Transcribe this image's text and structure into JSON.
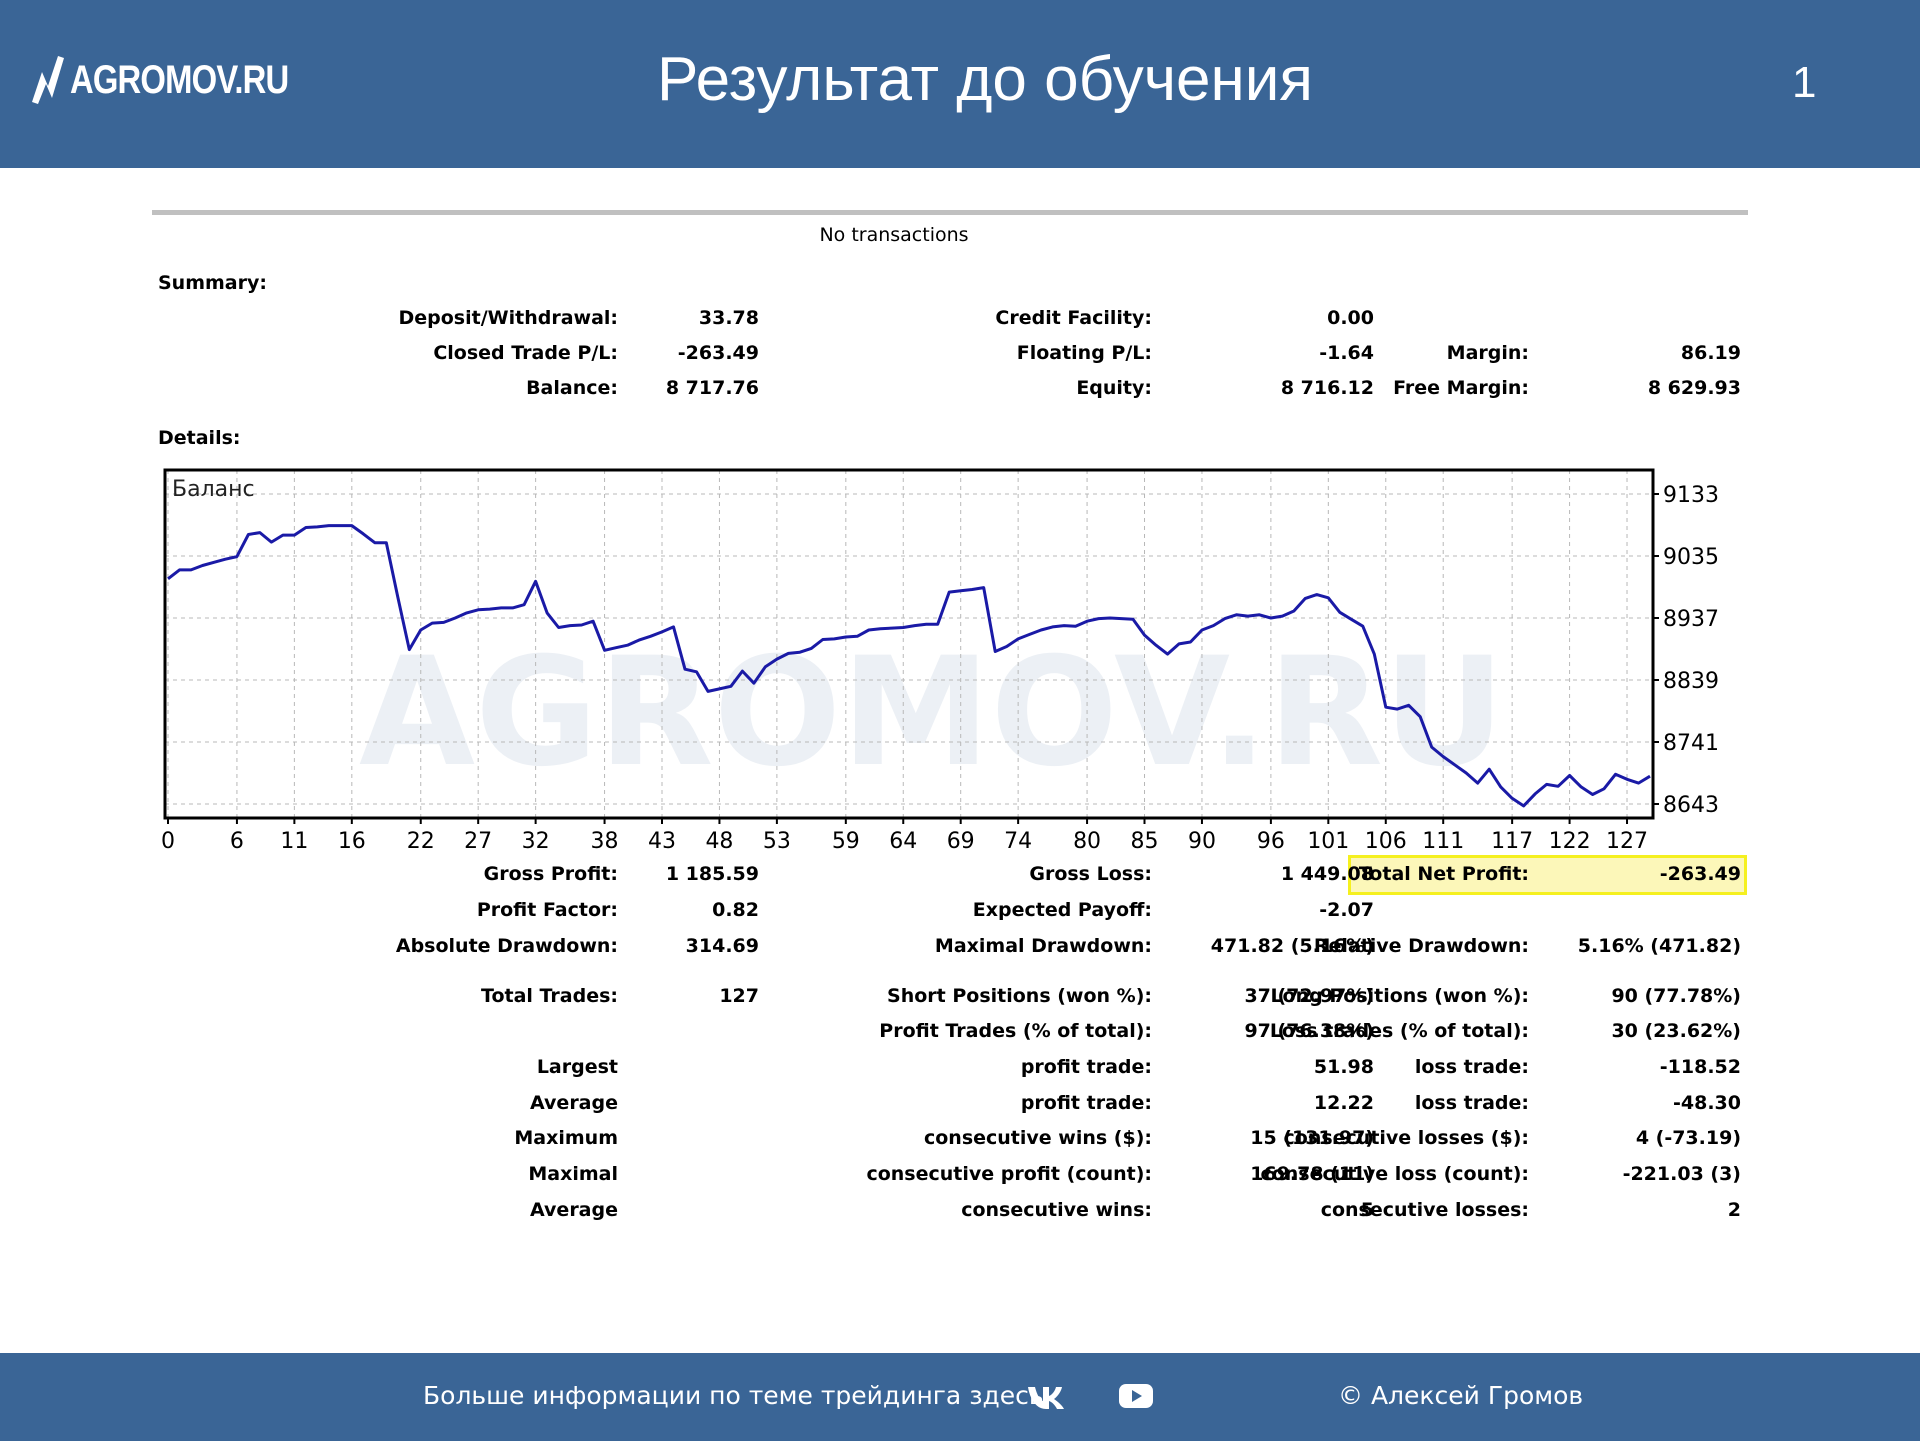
{
  "header": {
    "logo_text": "AGROMOV.RU",
    "title": "Результат до обучения",
    "slide_number": "1"
  },
  "report": {
    "no_transactions": "No transactions",
    "summary_heading": "Summary:",
    "details_heading": "Details:",
    "summary": [
      {
        "label": "Deposit/Withdrawal:",
        "value": "33.78"
      },
      {
        "label": "Credit Facility:",
        "value": "0.00"
      },
      {
        "label": "Closed Trade P/L:",
        "value": "-263.49"
      },
      {
        "label": "Floating P/L:",
        "value": "-1.64"
      },
      {
        "label": "Margin:",
        "value": "86.19"
      },
      {
        "label": "Balance:",
        "value": "8 717.76"
      },
      {
        "label": "Equity:",
        "value": "8 716.12"
      },
      {
        "label": "Free Margin:",
        "value": "8 629.93"
      }
    ],
    "details": [
      {
        "label": "Gross Profit:",
        "value": "1 185.59"
      },
      {
        "label": "Gross Loss:",
        "value": "1 449.08"
      },
      {
        "label": "Total Net Profit:",
        "value": "-263.49"
      },
      {
        "label": "Profit Factor:",
        "value": "0.82"
      },
      {
        "label": "Expected Payoff:",
        "value": "-2.07"
      },
      {
        "label": "Absolute Drawdown:",
        "value": "314.69"
      },
      {
        "label": "Maximal Drawdown:",
        "value": "471.82 (5.16%)"
      },
      {
        "label": "Relative Drawdown:",
        "value": "5.16% (471.82)"
      },
      {
        "label": "Total Trades:",
        "value": "127"
      },
      {
        "label": "Short Positions (won %):",
        "value": "37 (72.97%)"
      },
      {
        "label": "Long Positions (won %):",
        "value": "90 (77.78%)"
      },
      {
        "label": "Profit Trades (% of total):",
        "value": "97 (76.38%)"
      },
      {
        "label": "Loss trades (% of total):",
        "value": "30 (23.62%)"
      },
      {
        "label": "Largest",
        "value": ""
      },
      {
        "label": "profit trade:",
        "value": "51.98"
      },
      {
        "label": "loss trade:",
        "value": "-118.52"
      },
      {
        "label": "Average",
        "value": ""
      },
      {
        "label": "profit trade:",
        "value": "12.22"
      },
      {
        "label": "loss trade:",
        "value": "-48.30"
      },
      {
        "label": "Maximum",
        "value": ""
      },
      {
        "label": "consecutive wins ($):",
        "value": "15 (131.97)"
      },
      {
        "label": "consecutive losses ($):",
        "value": "4 (-73.19)"
      },
      {
        "label": "Maximal",
        "value": ""
      },
      {
        "label": "consecutive profit (count):",
        "value": "169.78 (11)"
      },
      {
        "label": "consecutive loss (count):",
        "value": "-221.03 (3)"
      },
      {
        "label": "Average",
        "value": ""
      },
      {
        "label": "consecutive wins:",
        "value": "5"
      },
      {
        "label": "consecutive losses:",
        "value": "2"
      }
    ]
  },
  "chart_data": {
    "type": "line",
    "title": "Баланс",
    "xlabel": "",
    "ylabel": "",
    "x_ticks": [
      "0",
      "6",
      "11",
      "16",
      "22",
      "27",
      "32",
      "38",
      "43",
      "48",
      "53",
      "59",
      "64",
      "69",
      "74",
      "80",
      "85",
      "90",
      "96",
      "101",
      "106",
      "111",
      "117",
      "122",
      "127"
    ],
    "y_ticks": [
      "9133",
      "9035",
      "8937",
      "8839",
      "8741",
      "8643"
    ],
    "xlim": [
      0,
      129
    ],
    "ylim": [
      8643,
      9160
    ],
    "grid": true,
    "line_color": "#1a1aa6",
    "watermark": "AGROMOV.RU",
    "series": [
      {
        "x": [
          0,
          1,
          2,
          3,
          4,
          5,
          6,
          7,
          8,
          9,
          10,
          11,
          12,
          13,
          14,
          15,
          16,
          17,
          18,
          19,
          20,
          21,
          22,
          23,
          24,
          25,
          26,
          27,
          28,
          29,
          30,
          31,
          32,
          33,
          34,
          35,
          36,
          37,
          38,
          39,
          40,
          41,
          42,
          43,
          44,
          45,
          46,
          47,
          48,
          49,
          50,
          51,
          52,
          53,
          54,
          55,
          56,
          57,
          58,
          59,
          60,
          61,
          62,
          63,
          64,
          65,
          66,
          67,
          68,
          69,
          70,
          71,
          72,
          73,
          74,
          75,
          76,
          77,
          78,
          79,
          80,
          81,
          82,
          83,
          84,
          85,
          86,
          87,
          88,
          89,
          90,
          91,
          92,
          93,
          94,
          95,
          96,
          97,
          98,
          99,
          100,
          101,
          102,
          103,
          104,
          105,
          106,
          107,
          108,
          109,
          110,
          111,
          112,
          113,
          114,
          115,
          116,
          117,
          118,
          119,
          120,
          121,
          122,
          123,
          124,
          125,
          126,
          127,
          128,
          129
        ],
        "y": [
          9000,
          9013,
          9014,
          9022,
          9026,
          9030,
          9034,
          9070,
          9073,
          9057,
          9068,
          9068,
          9079,
          9079,
          9082,
          9084,
          9084,
          9082,
          9060,
          9060,
          8975,
          8888,
          8925,
          8932,
          8933,
          8942,
          8946,
          8948,
          8948,
          8951,
          8954,
          8993,
          8933,
          8923,
          8925,
          8928,
          8930,
          8886,
          8890,
          8893,
          8901,
          8904,
          8910,
          8920,
          8865,
          8861,
          8840,
          8843,
          8847,
          8866,
          8834,
          8860,
          8870,
          8878,
          8890,
          8890,
          8893,
          8895,
          8896,
          8898,
          8918,
          8919,
          8920,
          8922,
          8924,
          8924,
          8925,
          8990,
          8992,
          8993,
          8995,
          8837,
          8843,
          8866,
          8875,
          8879,
          8891,
          8896,
          8902,
          8905,
          8907,
          8911,
          8913,
          8913,
          8914,
          8896,
          8886,
          8882,
          8892,
          8896,
          8906,
          8911,
          8917,
          8918,
          8924,
          8925,
          8927,
          8932,
          8936,
          8983,
          8985,
          8979,
          8950,
          8937,
          8923,
          8880,
          8828,
          8820,
          8826,
          8774,
          8734,
          8718,
          8705,
          8692,
          8678,
          8695,
          8672,
          8653,
          8641,
          8658,
          8674,
          8672,
          8688,
          8670,
          8656,
          8667,
          8690,
          8682,
          8676,
          8686
        ],
        "points": [
          [
            0,
            8999
          ],
          [
            1,
            9013
          ],
          [
            2,
            9013
          ],
          [
            3,
            9020
          ],
          [
            4,
            9025
          ],
          [
            5,
            9030
          ],
          [
            6,
            9034
          ],
          [
            7,
            9069
          ],
          [
            8,
            9072
          ],
          [
            9,
            9057
          ],
          [
            10,
            9068
          ],
          [
            11,
            9068
          ],
          [
            12,
            9080
          ],
          [
            13,
            9081
          ],
          [
            14,
            9083
          ],
          [
            15,
            9083
          ],
          [
            16,
            9083
          ],
          [
            17,
            9070
          ],
          [
            18,
            9056
          ],
          [
            19,
            9056
          ],
          [
            20,
            8970
          ],
          [
            21,
            8887
          ],
          [
            22,
            8918
          ],
          [
            23,
            8929
          ],
          [
            24,
            8930
          ],
          [
            25,
            8937
          ],
          [
            26,
            8945
          ],
          [
            27,
            8950
          ],
          [
            28,
            8951
          ],
          [
            29,
            8953
          ],
          [
            30,
            8953
          ],
          [
            31,
            8958
          ],
          [
            32,
            8995
          ],
          [
            33,
            8945
          ],
          [
            34,
            8922
          ],
          [
            35,
            8925
          ],
          [
            36,
            8926
          ],
          [
            37,
            8932
          ],
          [
            38,
            8886
          ],
          [
            39,
            8890
          ],
          [
            40,
            8894
          ],
          [
            41,
            8902
          ],
          [
            42,
            8908
          ],
          [
            43,
            8915
          ],
          [
            44,
            8923
          ],
          [
            45,
            8856
          ],
          [
            46,
            8852
          ],
          [
            47,
            8821
          ],
          [
            48,
            8825
          ],
          [
            49,
            8829
          ],
          [
            50,
            8853
          ],
          [
            51,
            8834
          ],
          [
            52,
            8860
          ],
          [
            53,
            8872
          ],
          [
            54,
            8881
          ],
          [
            55,
            8883
          ],
          [
            56,
            8889
          ],
          [
            57,
            8903
          ],
          [
            58,
            8904
          ],
          [
            59,
            8907
          ],
          [
            60,
            8908
          ],
          [
            61,
            8918
          ],
          [
            62,
            8920
          ],
          [
            63,
            8921
          ],
          [
            64,
            8922
          ],
          [
            65,
            8925
          ],
          [
            66,
            8927
          ],
          [
            67,
            8927
          ],
          [
            68,
            8978
          ],
          [
            69,
            8980
          ],
          [
            70,
            8982
          ],
          [
            71,
            8985
          ],
          [
            72,
            8884
          ],
          [
            73,
            8892
          ],
          [
            74,
            8904
          ],
          [
            75,
            8911
          ],
          [
            76,
            8918
          ],
          [
            77,
            8923
          ],
          [
            78,
            8925
          ],
          [
            79,
            8924
          ],
          [
            80,
            8932
          ],
          [
            81,
            8936
          ],
          [
            82,
            8937
          ],
          [
            83,
            8936
          ],
          [
            84,
            8935
          ],
          [
            85,
            8910
          ],
          [
            86,
            8894
          ],
          [
            87,
            8880
          ],
          [
            88,
            8896
          ],
          [
            89,
            8899
          ],
          [
            90,
            8918
          ],
          [
            91,
            8925
          ],
          [
            92,
            8936
          ],
          [
            93,
            8942
          ],
          [
            94,
            8940
          ],
          [
            95,
            8942
          ],
          [
            96,
            8937
          ],
          [
            97,
            8940
          ],
          [
            98,
            8948
          ],
          [
            99,
            8968
          ],
          [
            100,
            8974
          ],
          [
            101,
            8969
          ],
          [
            102,
            8946
          ],
          [
            103,
            8935
          ],
          [
            104,
            8924
          ],
          [
            105,
            8880
          ],
          [
            106,
            8796
          ],
          [
            107,
            8793
          ],
          [
            108,
            8799
          ],
          [
            109,
            8781
          ],
          [
            110,
            8733
          ],
          [
            111,
            8718
          ],
          [
            112,
            8705
          ],
          [
            113,
            8692
          ],
          [
            114,
            8676
          ],
          [
            115,
            8698
          ],
          [
            116,
            8670
          ],
          [
            117,
            8652
          ],
          [
            118,
            8640
          ],
          [
            119,
            8659
          ],
          [
            120,
            8674
          ],
          [
            121,
            8671
          ],
          [
            122,
            8688
          ],
          [
            123,
            8670
          ],
          [
            124,
            8658
          ],
          [
            125,
            8667
          ],
          [
            126,
            8690
          ],
          [
            127,
            8682
          ],
          [
            128,
            8676
          ],
          [
            129,
            8687
          ]
        ]
      }
    ]
  },
  "footer": {
    "info_text": "Больше информации по теме трейдинга здесь",
    "vk_icon": "vk-icon",
    "youtube_icon": "youtube-icon",
    "copyright": "© Алексей Громов"
  }
}
